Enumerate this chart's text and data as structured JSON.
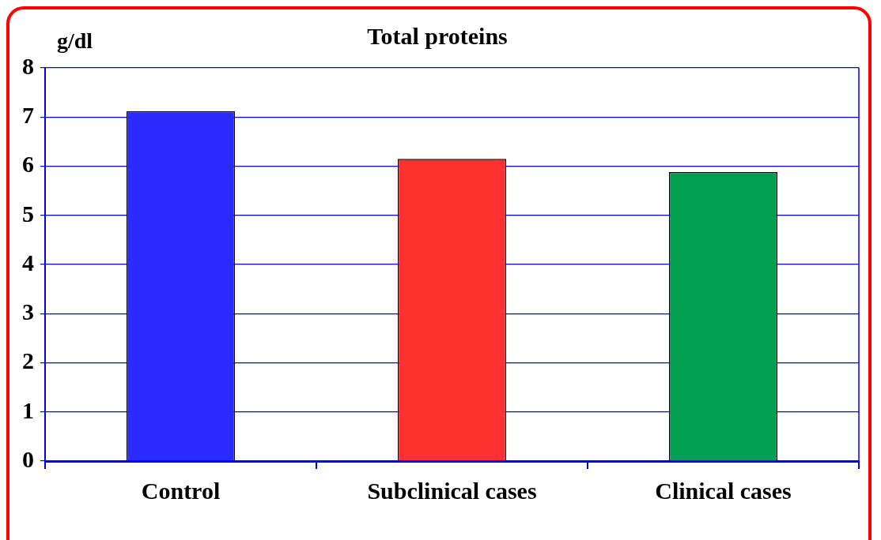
{
  "chart_data": {
    "type": "bar",
    "title": "Total proteins",
    "ylabel": "g/dl",
    "categories": [
      "Control",
      "Subclinical cases",
      "Clinical cases"
    ],
    "values": [
      7.12,
      6.15,
      5.88
    ],
    "colors": [
      "#2b2bff",
      "#ff3030",
      "#00a050"
    ],
    "ylim": [
      0,
      8
    ],
    "yticks": [
      0,
      1,
      2,
      3,
      4,
      5,
      6,
      7,
      8
    ],
    "grid": "y"
  }
}
